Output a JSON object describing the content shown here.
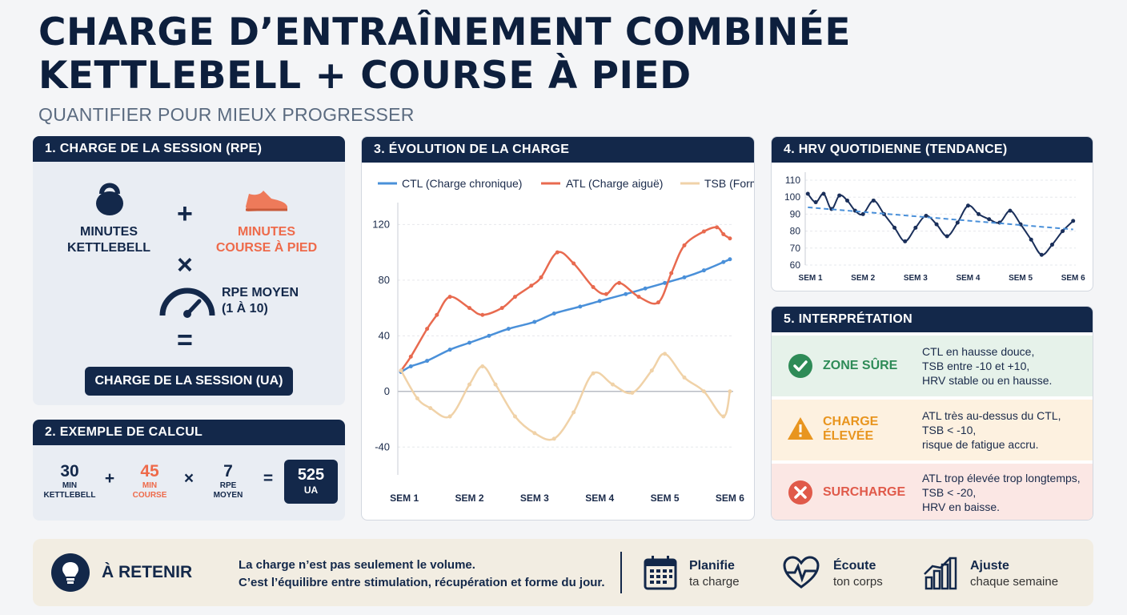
{
  "header": {
    "title_line1": "CHARGE D’ENTRAÎNEMENT COMBINÉE",
    "title_line2": "KETTLEBELL + COURSE À PIED",
    "subtitle": "QUANTIFIER POUR MIEUX PROGRESSER"
  },
  "session": {
    "heading": "1. CHARGE DE LA SESSION (RPE)",
    "kettlebell_l1": "MINUTES",
    "kettlebell_l2": "KETTLEBELL",
    "run_l1": "MINUTES",
    "run_l2": "COURSE À PIED",
    "plus": "+",
    "times": "×",
    "rpe_l1": "RPE MOYEN",
    "rpe_l2": "(1 À 10)",
    "equals": "=",
    "result": "CHARGE DE LA SESSION (UA)"
  },
  "example": {
    "heading": "2. EXEMPLE DE CALCUL",
    "kb_value": "30",
    "kb_l1": "MIN",
    "kb_l2": "KETTLEBELL",
    "plus": "+",
    "run_value": "45",
    "run_l1": "MIN",
    "run_l2": "COURSE",
    "times": "×",
    "rpe_value": "7",
    "rpe_l1": "RPE",
    "rpe_l2": "MOYEN",
    "equals": "=",
    "result_value": "525",
    "result_unit": "UA"
  },
  "load_chart": {
    "heading": "3. ÉVOLUTION DE LA CHARGE",
    "legend_ctl": "CTL (Charge chronique)",
    "legend_atl": "ATL (Charge aiguë)",
    "legend_tsb": "TSB (Forme)"
  },
  "hrv_chart": {
    "heading": "4. HRV QUOTIDIENNE (TENDANCE)"
  },
  "interpretation": {
    "heading": "5. INTERPRÉTATION",
    "zones": [
      {
        "title_l1": "ZONE SÛRE",
        "title_l2": "",
        "line1": "CTL en hausse douce,",
        "line2": "TSB entre -10 et +10,",
        "line3": "HRV stable ou en hausse.",
        "color": "#2e8b57"
      },
      {
        "title_l1": "CHARGE",
        "title_l2": "ÉLEVÉE",
        "line1": "ATL très au-dessus du CTL,",
        "line2": "TSB < -10,",
        "line3": "risque de fatigue accru.",
        "color": "#e8951f"
      },
      {
        "title_l1": "SURCHARGE",
        "title_l2": "",
        "line1": "ATL trop élevée trop longtemps,",
        "line2": "TSB < -20,",
        "line3": "HRV en baisse.",
        "color": "#e05a4a"
      }
    ]
  },
  "takeaway": {
    "title": "À RETENIR",
    "line1": "La charge n’est pas seulement le volume.",
    "line2": "C’est l’équilibre entre stimulation, récupération et forme du jour.",
    "tips": [
      {
        "title": "Planifie",
        "sub": "ta charge",
        "icon": "calendar-icon"
      },
      {
        "title": "Écoute",
        "sub": "ton corps",
        "icon": "heart-pulse-icon"
      },
      {
        "title": "Ajuste",
        "sub": "chaque semaine",
        "icon": "bar-chart-icon"
      }
    ]
  },
  "colors": {
    "navy": "#13284a",
    "ctl": "#4a90d9",
    "atl": "#e86a4f",
    "tsb": "#f0d2a8",
    "hrv": "#1a2f5a",
    "hrv_trend": "#4a90d9"
  },
  "chart_data": [
    {
      "type": "line",
      "title": "3. ÉVOLUTION DE LA CHARGE",
      "x_ticks": [
        "SEM 1",
        "SEM 2",
        "SEM 3",
        "SEM 4",
        "SEM 5",
        "SEM 6"
      ],
      "y_ticks": [
        120,
        80,
        40,
        0,
        -40
      ],
      "ylim": [
        -60,
        130
      ],
      "xlim": [
        0.9,
        6.05
      ],
      "grid": true,
      "legend": "top",
      "series": [
        {
          "name": "CTL (Charge chronique)",
          "color": "#4a90d9",
          "x": [
            0.95,
            1.1,
            1.35,
            1.7,
            2.0,
            2.3,
            2.6,
            3.0,
            3.3,
            3.7,
            4.0,
            4.4,
            4.7,
            5.0,
            5.3,
            5.6,
            5.9,
            6.0
          ],
          "y": [
            14,
            18,
            22,
            30,
            35,
            40,
            45,
            50,
            56,
            61,
            65,
            70,
            74,
            78,
            82,
            87,
            93,
            95
          ]
        },
        {
          "name": "ATL (Charge aiguë)",
          "color": "#e86a4f",
          "x": [
            0.95,
            1.1,
            1.35,
            1.5,
            1.7,
            2.0,
            2.2,
            2.5,
            2.7,
            2.95,
            3.1,
            3.35,
            3.6,
            3.9,
            4.1,
            4.3,
            4.6,
            4.9,
            5.1,
            5.3,
            5.6,
            5.8,
            5.9,
            6.0
          ],
          "y": [
            15,
            25,
            45,
            55,
            68,
            60,
            55,
            60,
            68,
            76,
            82,
            100,
            92,
            75,
            70,
            78,
            68,
            64,
            85,
            105,
            115,
            118,
            113,
            110
          ]
        },
        {
          "name": "TSB (Forme)",
          "color": "#f0d2a8",
          "x": [
            0.95,
            1.2,
            1.4,
            1.7,
            2.0,
            2.2,
            2.4,
            2.7,
            3.0,
            3.3,
            3.6,
            3.9,
            4.2,
            4.5,
            4.8,
            5.0,
            5.3,
            5.6,
            5.9,
            6.0
          ],
          "y": [
            15,
            -5,
            -12,
            -18,
            5,
            18,
            5,
            -18,
            -30,
            -34,
            -15,
            13,
            5,
            -1,
            15,
            27,
            10,
            0,
            -18,
            0
          ]
        }
      ]
    },
    {
      "type": "line",
      "title": "4. HRV QUOTIDIENNE (TENDANCE)",
      "x_ticks": [
        "SEM 1",
        "SEM 2",
        "SEM 3",
        "SEM 4",
        "SEM 5",
        "SEM 6"
      ],
      "y_ticks": [
        110,
        100,
        90,
        80,
        70,
        60
      ],
      "ylim": [
        60,
        110
      ],
      "xlim": [
        0.9,
        6.05
      ],
      "grid": true,
      "series": [
        {
          "name": "HRV",
          "color": "#1a2f5a",
          "x": [
            0.95,
            1.1,
            1.25,
            1.4,
            1.55,
            1.7,
            1.85,
            2.0,
            2.2,
            2.4,
            2.6,
            2.8,
            3.0,
            3.2,
            3.4,
            3.6,
            3.8,
            4.0,
            4.2,
            4.4,
            4.6,
            4.8,
            5.0,
            5.2,
            5.4,
            5.6,
            5.8,
            6.0
          ],
          "y": [
            102,
            97,
            102,
            93,
            101,
            98,
            92,
            90,
            98,
            90,
            82,
            74,
            82,
            89,
            84,
            77,
            85,
            95,
            90,
            87,
            85,
            92,
            84,
            75,
            66,
            72,
            80,
            86
          ]
        },
        {
          "name": "Tendance",
          "color": "#4a90d9",
          "dashed": true,
          "x": [
            0.95,
            6.0
          ],
          "y": [
            94,
            81
          ]
        }
      ]
    }
  ]
}
